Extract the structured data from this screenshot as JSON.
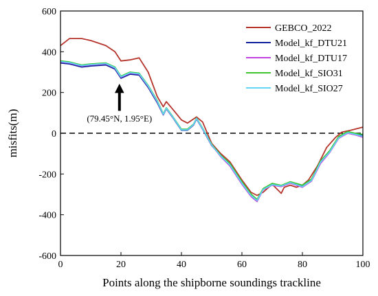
{
  "chart_data": {
    "type": "line",
    "xlabel": "Points along the shipborne soundings trackline",
    "ylabel": "misfits(m)",
    "xlim": [
      0,
      100
    ],
    "ylim": [
      -600,
      600
    ],
    "xticks": [
      0,
      20,
      40,
      60,
      80,
      100
    ],
    "yticks": [
      -600,
      -400,
      -200,
      0,
      200,
      400,
      600
    ],
    "grid": false,
    "legend_position": "top-right",
    "reference_line": {
      "y": 0,
      "style": "dashed",
      "color": "#000000"
    },
    "annotation": {
      "text": "(79.45°N, 1.95°E)",
      "x": 19.5,
      "y": 280,
      "arrow": "up"
    },
    "series": [
      {
        "name": "GEBCO_2022",
        "color": "#b5332a",
        "x": [
          0,
          3,
          7,
          10,
          15,
          18,
          20,
          23,
          26,
          29,
          32,
          34,
          35,
          37,
          40,
          42,
          44,
          45,
          47,
          50,
          53,
          56,
          60,
          63,
          65,
          67,
          70,
          73,
          74,
          76,
          78,
          80,
          82,
          85,
          88,
          91,
          93,
          96,
          100
        ],
        "y": [
          430,
          465,
          465,
          455,
          430,
          400,
          355,
          360,
          370,
          300,
          180,
          130,
          155,
          120,
          65,
          50,
          70,
          80,
          55,
          -50,
          -100,
          -140,
          -230,
          -290,
          -305,
          -290,
          -250,
          -295,
          -265,
          -255,
          -265,
          -255,
          -230,
          -160,
          -70,
          -20,
          5,
          15,
          30
        ]
      },
      {
        "name": "Model_kf_DTU21",
        "color": "#10209a",
        "x": [
          0,
          3,
          7,
          10,
          15,
          18,
          20,
          23,
          26,
          29,
          32,
          34,
          35,
          37,
          40,
          42,
          44,
          45,
          47,
          50,
          53,
          56,
          60,
          63,
          65,
          67,
          70,
          73,
          76,
          80,
          83,
          86,
          89,
          92,
          95,
          98,
          100
        ],
        "y": [
          345,
          340,
          325,
          330,
          335,
          315,
          270,
          290,
          285,
          225,
          150,
          90,
          120,
          80,
          15,
          15,
          40,
          70,
          20,
          -60,
          -110,
          -150,
          -240,
          -300,
          -330,
          -275,
          -250,
          -260,
          -240,
          -260,
          -230,
          -140,
          -90,
          -20,
          5,
          -5,
          -10
        ]
      },
      {
        "name": "Model_kf_DTU17",
        "color": "#c040e0",
        "x": [
          0,
          3,
          7,
          10,
          15,
          18,
          20,
          23,
          26,
          29,
          32,
          34,
          35,
          37,
          40,
          42,
          44,
          45,
          47,
          50,
          53,
          56,
          60,
          63,
          65,
          67,
          70,
          73,
          76,
          80,
          83,
          86,
          89,
          92,
          95,
          98,
          100
        ],
        "y": [
          350,
          345,
          330,
          335,
          340,
          320,
          275,
          295,
          290,
          230,
          155,
          92,
          122,
          82,
          18,
          18,
          42,
          72,
          22,
          -58,
          -115,
          -160,
          -250,
          -310,
          -335,
          -278,
          -255,
          -262,
          -245,
          -265,
          -235,
          -148,
          -95,
          -25,
          0,
          -10,
          -20
        ]
      },
      {
        "name": "Model_kf_SIO31",
        "color": "#3ec42f",
        "x": [
          0,
          3,
          7,
          10,
          15,
          18,
          20,
          23,
          26,
          29,
          32,
          34,
          35,
          37,
          40,
          42,
          44,
          45,
          47,
          50,
          53,
          56,
          60,
          63,
          65,
          67,
          70,
          73,
          76,
          80,
          83,
          86,
          89,
          92,
          95,
          98,
          100
        ],
        "y": [
          355,
          350,
          335,
          340,
          345,
          325,
          280,
          300,
          295,
          235,
          160,
          95,
          125,
          85,
          20,
          20,
          45,
          75,
          25,
          -55,
          -108,
          -148,
          -238,
          -298,
          -325,
          -272,
          -246,
          -256,
          -238,
          -255,
          -226,
          -136,
          -86,
          -16,
          8,
          -2,
          -5
        ]
      },
      {
        "name": "Model_kf_SIO27",
        "color": "#5fd6f2",
        "x": [
          0,
          3,
          7,
          10,
          15,
          18,
          20,
          23,
          26,
          29,
          32,
          34,
          35,
          37,
          40,
          42,
          44,
          45,
          47,
          50,
          53,
          56,
          60,
          63,
          65,
          67,
          70,
          73,
          76,
          80,
          83,
          86,
          89,
          92,
          95,
          98,
          100
        ],
        "y": [
          352,
          347,
          332,
          337,
          342,
          322,
          277,
          297,
          292,
          232,
          157,
          93,
          123,
          83,
          17,
          17,
          43,
          73,
          23,
          -57,
          -112,
          -155,
          -245,
          -305,
          -330,
          -276,
          -252,
          -259,
          -242,
          -262,
          -232,
          -142,
          -92,
          -22,
          3,
          -7,
          -15
        ]
      }
    ]
  }
}
